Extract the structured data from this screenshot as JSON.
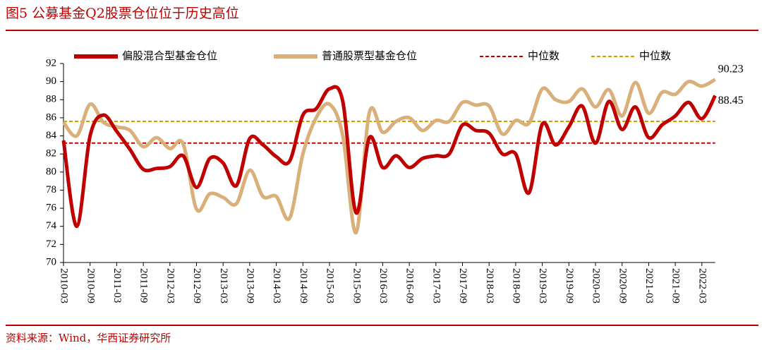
{
  "title": "图5 公募基金Q2股票仓位位于历史高位",
  "source": "资料来源：Wind，华西证券研究所",
  "chart_data": {
    "type": "line",
    "categories": [
      "2010-03",
      null,
      "2010-09",
      null,
      "2011-03",
      null,
      "2011-09",
      null,
      "2012-03",
      null,
      "2012-09",
      null,
      "2013-03",
      null,
      "2013-09",
      null,
      "2014-03",
      null,
      "2014-09",
      null,
      "2015-03",
      null,
      "2015-09",
      null,
      "2016-03",
      null,
      "2016-09",
      null,
      "2017-03",
      null,
      "2017-09",
      null,
      "2018-03",
      null,
      "2018-09",
      null,
      "2019-03",
      null,
      "2019-09",
      null,
      "2020-03",
      null,
      "2020-09",
      null,
      "2021-03",
      null,
      "2021-09",
      null,
      "2022-03",
      null
    ],
    "series": [
      {
        "name": "偏股混合型基金仓位",
        "color": "#c00000",
        "values": [
          83.5,
          74,
          84,
          86.3,
          84.5,
          82.5,
          80.3,
          80.4,
          80.6,
          81.8,
          78.3,
          81.5,
          81,
          78.5,
          83.7,
          83,
          81.7,
          81.2,
          86.3,
          87,
          89.2,
          87.8,
          75.5,
          83.8,
          80.5,
          81.8,
          80.5,
          81.5,
          81.8,
          82,
          85.2,
          84.6,
          84.3,
          82,
          82,
          77.7,
          85.3,
          83,
          85,
          87.3,
          83.2,
          87.8,
          84.7,
          87.2,
          83.8,
          85.2,
          86.2,
          87.7,
          85.9,
          88.45
        ]
      },
      {
        "name": "普通股票型基金仓位",
        "color": "#d9b07a",
        "values": [
          85.5,
          84,
          87.5,
          85.5,
          85,
          84.6,
          82.8,
          83.8,
          82.6,
          83.1,
          75.9,
          77.6,
          77.2,
          76.5,
          80.2,
          77.3,
          77.3,
          74.9,
          82,
          86,
          87.5,
          84,
          73.3,
          86.6,
          84.4,
          85.6,
          86,
          84.6,
          85.7,
          85.6,
          87.7,
          87.4,
          87.3,
          84.2,
          85.7,
          85.4,
          89.2,
          88,
          87.8,
          89.2,
          87.2,
          89.1,
          86.2,
          89.9,
          86.5,
          88.8,
          88.6,
          90,
          89.5,
          90.23
        ]
      }
    ],
    "medians": [
      {
        "name": "中位数",
        "color": "#c00000",
        "value": 83.2
      },
      {
        "name": "中位数",
        "color": "#c9a000",
        "value": 85.6
      }
    ],
    "ylim": [
      70,
      92
    ],
    "yticks": [
      70,
      72,
      74,
      76,
      78,
      80,
      82,
      84,
      86,
      88,
      90,
      92
    ]
  }
}
